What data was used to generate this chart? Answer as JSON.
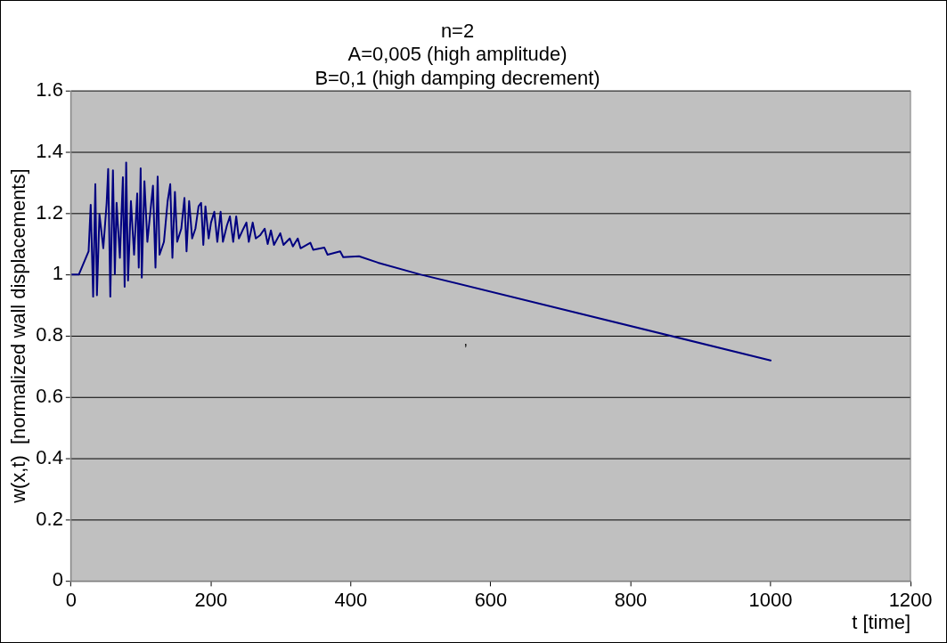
{
  "chart_data": {
    "type": "line",
    "title": "n=2\nA=0,005 (high amplitude)\nB=0,1 (high damping decrement)",
    "xlabel": "t [time]",
    "ylabel": "w(x,t)  [normalized wall displacements]",
    "xlim": [
      0,
      1200
    ],
    "xticks": [
      0,
      200,
      400,
      600,
      800,
      1000,
      1200
    ],
    "ylim": [
      0,
      1.6
    ],
    "yticks": [
      0,
      0.2,
      0.4,
      0.6,
      0.8,
      1,
      1.2,
      1.4,
      1.6
    ],
    "grid": "y",
    "legend": false,
    "marker": "none",
    "line_style": "solid",
    "annotations": [
      ","
    ],
    "series": [
      {
        "color": "#000080",
        "x": [
          0,
          11,
          25,
          28,
          31.5,
          34.6,
          36.9,
          40.5,
          46,
          50.8,
          53,
          56,
          59.8,
          62.5,
          65,
          69.7,
          74,
          76.5,
          78.7,
          81.4,
          85.5,
          90,
          94.5,
          96.7,
          99.4,
          101,
          104.8,
          109,
          117,
          120.6,
          123.7,
          126.4,
          132.7,
          138,
          141.7,
          144.8,
          148.4,
          151.6,
          157.5,
          162,
          165,
          168.7,
          173,
          177.7,
          182.2,
          185.8,
          189,
          192,
          196.6,
          200,
          204.7,
          209,
          213.7,
          217,
          222.7,
          227,
          231.7,
          236,
          239.8,
          245,
          250.6,
          254,
          259.6,
          264,
          270,
          276.7,
          281,
          285.6,
          290,
          299,
          303.6,
          312.6,
          317,
          324,
          328,
          342,
          346,
          362,
          366.6,
          384.6,
          389,
          411.6,
          438.6,
          500,
          1000
        ],
        "values": [
          1,
          1,
          1.076,
          1.228,
          0.928,
          1.295,
          0.933,
          1.197,
          1.086,
          1.234,
          1.345,
          0.928,
          1.34,
          1.002,
          1.234,
          1.055,
          1.318,
          0.96,
          1.366,
          0.981,
          1.24,
          1.065,
          1.265,
          1.023,
          1.347,
          0.99,
          1.305,
          1.107,
          1.29,
          1.023,
          1.32,
          1.065,
          1.107,
          1.24,
          1.295,
          1.055,
          1.27,
          1.107,
          1.15,
          1.25,
          1.076,
          1.24,
          1.118,
          1.15,
          1.223,
          1.234,
          1.097,
          1.223,
          1.118,
          1.17,
          1.205,
          1.107,
          1.205,
          1.107,
          1.16,
          1.19,
          1.107,
          1.19,
          1.118,
          1.144,
          1.17,
          1.107,
          1.17,
          1.118,
          1.128,
          1.15,
          1.1,
          1.144,
          1.097,
          1.135,
          1.097,
          1.118,
          1.092,
          1.118,
          1.086,
          1.104,
          1.081,
          1.088,
          1.065,
          1.076,
          1.057,
          1.06,
          1.039,
          1,
          0.72
        ]
      }
    ]
  }
}
